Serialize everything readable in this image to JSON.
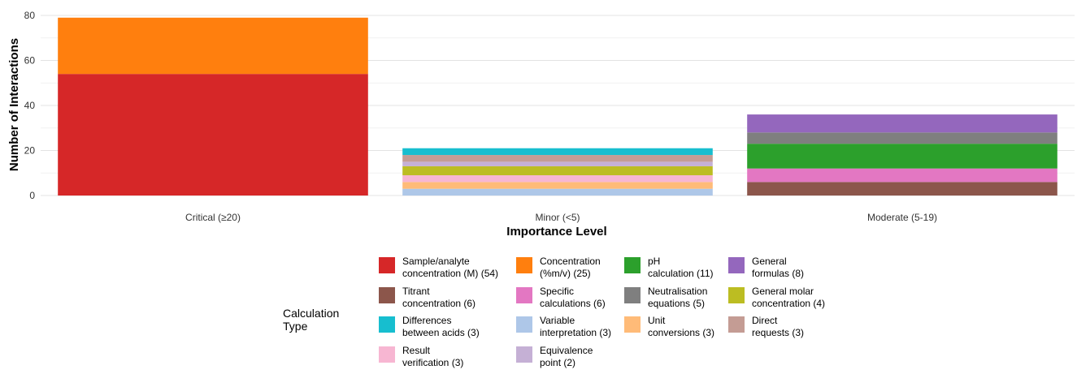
{
  "chart_data": {
    "type": "bar",
    "stacked": true,
    "xlabel": "Importance Level",
    "ylabel": "Number of Interactions",
    "ylim": [
      0,
      80
    ],
    "yticks": [
      0,
      20,
      40,
      60,
      80
    ],
    "grid": true,
    "legend_title": "Calculation Type",
    "legend_position": "bottom",
    "categories": [
      "Critical (≥20)",
      "Minor (<5)",
      "Moderate (5-19)"
    ],
    "series": [
      {
        "name": "Sample/analyte concentration (M) (54)",
        "color": "#d62728",
        "values": [
          54,
          0,
          0
        ]
      },
      {
        "name": "Concentration (%m/v) (25)",
        "color": "#ff7f0e",
        "values": [
          25,
          0,
          0
        ]
      },
      {
        "name": "pH calculation (11)",
        "color": "#2ca02c",
        "values": [
          0,
          0,
          11
        ]
      },
      {
        "name": "General formulas (8)",
        "color": "#9467bd",
        "values": [
          0,
          0,
          8
        ]
      },
      {
        "name": "Titrant concentration (6)",
        "color": "#8c564b",
        "values": [
          0,
          0,
          6
        ]
      },
      {
        "name": "Specific calculations (6)",
        "color": "#e377c2",
        "values": [
          0,
          0,
          6
        ]
      },
      {
        "name": "Neutralisation equations (5)",
        "color": "#7f7f7f",
        "values": [
          0,
          0,
          5
        ]
      },
      {
        "name": "General molar concentration (4)",
        "color": "#bcbd22",
        "values": [
          0,
          4,
          0
        ]
      },
      {
        "name": "Differences between acids (3)",
        "color": "#17becf",
        "values": [
          0,
          3,
          0
        ]
      },
      {
        "name": "Variable interpretation (3)",
        "color": "#aec7e8",
        "values": [
          0,
          3,
          0
        ]
      },
      {
        "name": "Unit conversions (3)",
        "color": "#ffbb78",
        "values": [
          0,
          3,
          0
        ]
      },
      {
        "name": "Direct requests (3)",
        "color": "#c49c94",
        "values": [
          0,
          3,
          0
        ]
      },
      {
        "name": "Result verification (3)",
        "color": "#f7b6d2",
        "values": [
          0,
          3,
          0
        ]
      },
      {
        "name": "Equivalence point (2)",
        "color": "#c5b0d5",
        "values": [
          0,
          2,
          0
        ]
      }
    ],
    "stack_order": {
      "Critical (≥20)": [
        "Sample/analyte concentration (M) (54)",
        "Concentration (%m/v) (25)"
      ],
      "Minor (<5)": [
        "Variable interpretation (3)",
        "Unit conversions (3)",
        "Result verification (3)",
        "General molar concentration (4)",
        "Equivalence point (2)",
        "Direct requests (3)",
        "Differences between acids (3)"
      ],
      "Moderate (5-19)": [
        "Titrant concentration (6)",
        "Specific calculations (6)",
        "pH calculation (11)",
        "Neutralisation equations (5)",
        "General formulas (8)"
      ]
    },
    "legend_rows": [
      [
        [
          "Sample/analyte",
          "concentration (M) (54)"
        ],
        [
          "Concentration",
          "(%m/v) (25)"
        ],
        [
          "pH",
          "calculation (11)"
        ],
        [
          "General",
          "formulas (8)"
        ]
      ],
      [
        [
          "Titrant",
          "concentration (6)"
        ],
        [
          "Specific",
          "calculations (6)"
        ],
        [
          "Neutralisation",
          "equations (5)"
        ],
        [
          "General molar",
          "concentration (4)"
        ]
      ],
      [
        [
          "Differences",
          "between acids (3)"
        ],
        [
          "Variable",
          "interpretation (3)"
        ],
        [
          "Unit",
          "conversions (3)"
        ],
        [
          "Direct",
          "requests (3)"
        ]
      ],
      [
        [
          "Result",
          "verification (3)"
        ],
        [
          "Equivalence",
          "point (2)"
        ]
      ]
    ]
  }
}
